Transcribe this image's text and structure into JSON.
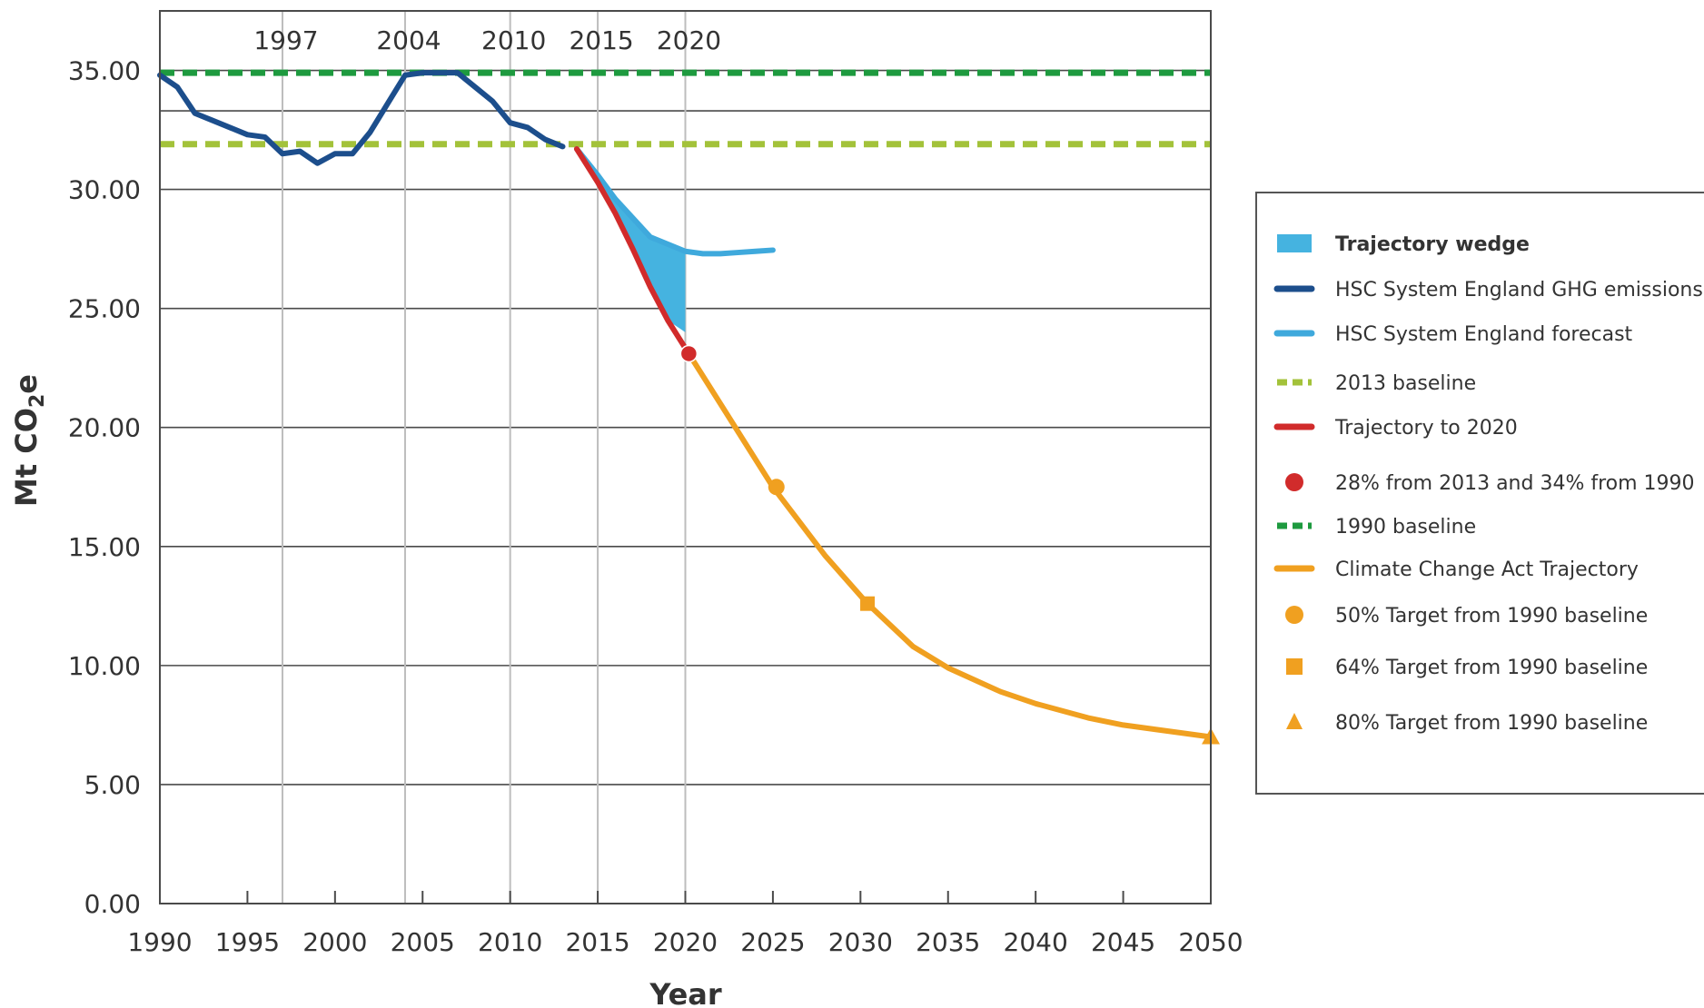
{
  "chart_data": {
    "type": "line",
    "xlabel": "Year",
    "ylabel": "Mt CO",
    "ylabel_subscript": "2",
    "ylabel_suffix": "e",
    "xlim": [
      1990,
      2050
    ],
    "ylim": [
      0,
      37.5
    ],
    "x_ticks": [
      "1990",
      "1995",
      "2000",
      "2005",
      "2010",
      "2015",
      "2020",
      "2025",
      "2030",
      "2035",
      "2040",
      "2045",
      "2050"
    ],
    "y_ticks": [
      "0.00",
      "5.00",
      "10.00",
      "15.00",
      "20.00",
      "25.00",
      "30.00",
      "35.00"
    ],
    "y_gridlines": [
      0,
      5,
      10,
      15,
      20,
      25,
      30,
      33.3,
      35
    ],
    "highlight_years": [
      "1997",
      "2004",
      "2010",
      "2015",
      "2020"
    ],
    "grid": true,
    "legend_position": "right",
    "series": [
      {
        "name": "HSC System England GHG emissions",
        "color": "#1c4e8c",
        "style": "solid",
        "x": [
          1990,
          1991,
          1992,
          1993,
          1994,
          1995,
          1996,
          1997,
          1998,
          1999,
          2000,
          2001,
          2002,
          2003,
          2004,
          2005,
          2006,
          2007,
          2008,
          2009,
          2010,
          2011,
          2012,
          2013
        ],
        "y": [
          34.8,
          34.3,
          33.2,
          32.9,
          32.6,
          32.3,
          32.2,
          31.5,
          31.6,
          31.1,
          31.5,
          31.5,
          32.4,
          33.6,
          34.8,
          34.9,
          34.9,
          34.9,
          34.3,
          33.7,
          32.8,
          32.6,
          32.1,
          31.8
        ]
      },
      {
        "name": "HSC System England forecast",
        "color": "#3fa9dc",
        "style": "solid",
        "x": [
          2013.8,
          2015,
          2016,
          2017,
          2018,
          2019,
          2020,
          2021,
          2022,
          2023,
          2024,
          2025
        ],
        "y": [
          31.7,
          30.6,
          29.6,
          28.8,
          28.0,
          27.7,
          27.4,
          27.3,
          27.3,
          27.35,
          27.4,
          27.45
        ]
      },
      {
        "name": "2013 baseline",
        "color": "#a3c23a",
        "style": "dashed",
        "x": [
          1990,
          2050
        ],
        "y": [
          31.9,
          31.9
        ]
      },
      {
        "name": "Trajectory to 2020",
        "color": "#d12b2b",
        "style": "solid",
        "x": [
          2013.8,
          2015,
          2016,
          2017,
          2018,
          2019,
          2020.2
        ],
        "y": [
          31.7,
          30.3,
          29.0,
          27.5,
          25.9,
          24.5,
          23.1
        ]
      },
      {
        "name": "1990 baseline",
        "color": "#1e9a3f",
        "style": "dashed",
        "x": [
          1990,
          2050
        ],
        "y": [
          34.9,
          34.9
        ]
      },
      {
        "name": "Climate Change Act Trajectory",
        "color": "#f0a020",
        "style": "solid",
        "x": [
          2020.2,
          2022,
          2025,
          2028,
          2030.4,
          2033,
          2035,
          2038,
          2040,
          2043,
          2045,
          2048,
          2050
        ],
        "y": [
          23.1,
          21.0,
          17.5,
          14.6,
          12.6,
          10.8,
          9.9,
          8.9,
          8.4,
          7.8,
          7.5,
          7.2,
          7.0
        ]
      }
    ],
    "wedge": {
      "name": "Trajectory wedge",
      "color": "#45b3e0",
      "upper_x": [
        2014.7,
        2016,
        2017,
        2018,
        2019,
        2020
      ],
      "upper_y": [
        30.6,
        29.6,
        28.8,
        28.0,
        27.7,
        27.4
      ],
      "lower_x": [
        2020,
        2019,
        2018,
        2017,
        2016,
        2015,
        2014.7
      ],
      "lower_y": [
        24.0,
        24.5,
        25.9,
        27.5,
        29.0,
        30.3,
        30.6
      ]
    },
    "markers": [
      {
        "name": "28% from 2013 and 34% from 1990",
        "shape": "circle",
        "color": "#d12b2b",
        "x": 2020.2,
        "y": 23.1
      },
      {
        "name": "50% Target from 1990 baseline",
        "shape": "circle",
        "color": "#f0a020",
        "x": 2025.2,
        "y": 17.5
      },
      {
        "name": "64% Target from 1990 baseline",
        "shape": "square",
        "color": "#f0a020",
        "x": 2030.4,
        "y": 12.6
      },
      {
        "name": "80% Target from 1990 baseline",
        "shape": "triangle",
        "color": "#f0a020",
        "x": 2050,
        "y": 7.0
      }
    ],
    "legend": [
      {
        "label": "Trajectory wedge",
        "symbol": "wedge",
        "color": "#45b3e0"
      },
      {
        "label": "HSC System England GHG emissions",
        "symbol": "line",
        "color": "#1c4e8c"
      },
      {
        "label": "HSC System England forecast",
        "symbol": "line",
        "color": "#3fa9dc"
      },
      {
        "label": "2013 baseline",
        "symbol": "dashed",
        "color": "#a3c23a"
      },
      {
        "label": "Trajectory to 2020",
        "symbol": "line",
        "color": "#d12b2b"
      },
      {
        "label": "28% from 2013 and 34% from 1990",
        "symbol": "circle",
        "color": "#d12b2b"
      },
      {
        "label": "1990 baseline",
        "symbol": "dashed",
        "color": "#1e9a3f"
      },
      {
        "label": "Climate Change Act Trajectory",
        "symbol": "line",
        "color": "#f0a020"
      },
      {
        "label": "50% Target from 1990 baseline",
        "symbol": "circle",
        "color": "#f0a020"
      },
      {
        "label": "64% Target from 1990 baseline",
        "symbol": "square",
        "color": "#f0a020"
      },
      {
        "label": "80% Target from 1990 baseline",
        "symbol": "triangle",
        "color": "#f0a020"
      }
    ]
  }
}
